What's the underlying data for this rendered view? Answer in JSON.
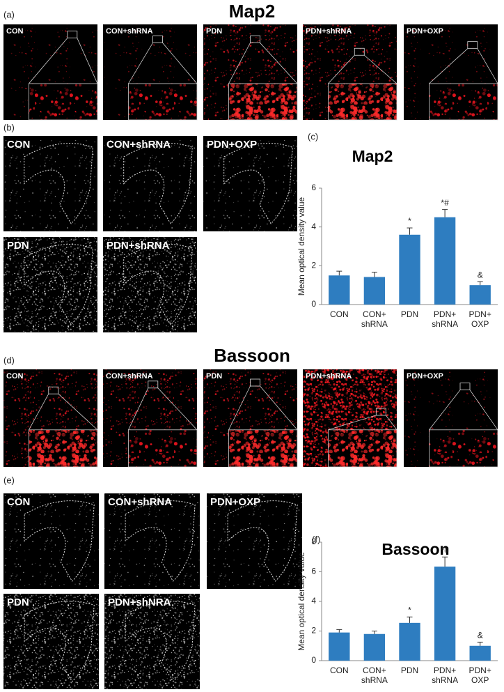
{
  "figure": {
    "panel_a": {
      "label": "(a)",
      "title": "Map2",
      "images": [
        "CON",
        "CON+shRNA",
        "PDN",
        "PDN+shRNA",
        "PDN+OXP"
      ]
    },
    "panel_b": {
      "label": "(b)",
      "images": [
        "CON",
        "CON+shRNA",
        "PDN+OXP",
        "PDN",
        "PDN+shRNA"
      ]
    },
    "panel_d": {
      "label": "(d)",
      "title": "Bassoon",
      "images": [
        "CON",
        "CON+shRNA",
        "PDN",
        "PDN+shRNA",
        "PDN+OXP"
      ]
    },
    "panel_e": {
      "label": "(e)",
      "images": [
        "CON",
        "CON+shRNA",
        "PDN+OXP",
        "PDN",
        "PDN+shNRA"
      ]
    }
  },
  "chart_data": [
    {
      "type": "bar",
      "panel_label": "(c)",
      "title": "Map2",
      "ylabel": "Mean optical density value",
      "categories": [
        [
          "CON"
        ],
        [
          "CON+",
          "shRNA"
        ],
        [
          "PDN"
        ],
        [
          "PDN+",
          "shRNA"
        ],
        [
          "PDN+",
          "OXP"
        ]
      ],
      "values": [
        1.5,
        1.42,
        3.6,
        4.5,
        1.0
      ],
      "errors": [
        0.22,
        0.25,
        0.35,
        0.4,
        0.18
      ],
      "annotations": [
        null,
        null,
        "*",
        "*#",
        "&"
      ],
      "color": "#2e7dc0",
      "ylim": [
        0,
        6
      ],
      "yticks": [
        0,
        2,
        4,
        6
      ]
    },
    {
      "type": "bar",
      "panel_label": "(f)",
      "title": "Bassoon",
      "ylabel": "Mean optical density value",
      "categories": [
        [
          "CON"
        ],
        [
          "CON+",
          "shRNA"
        ],
        [
          "PDN"
        ],
        [
          "PDN+",
          "shRNA"
        ],
        [
          "PDN+",
          "OXP"
        ]
      ],
      "values": [
        1.9,
        1.8,
        2.55,
        6.35,
        1.0
      ],
      "errors": [
        0.2,
        0.2,
        0.4,
        0.65,
        0.25
      ],
      "annotations": [
        null,
        null,
        "*",
        "*#",
        "&"
      ],
      "color": "#2e7dc0",
      "ylim": [
        0,
        8
      ],
      "yticks": [
        0,
        2,
        4,
        6,
        8
      ]
    }
  ]
}
